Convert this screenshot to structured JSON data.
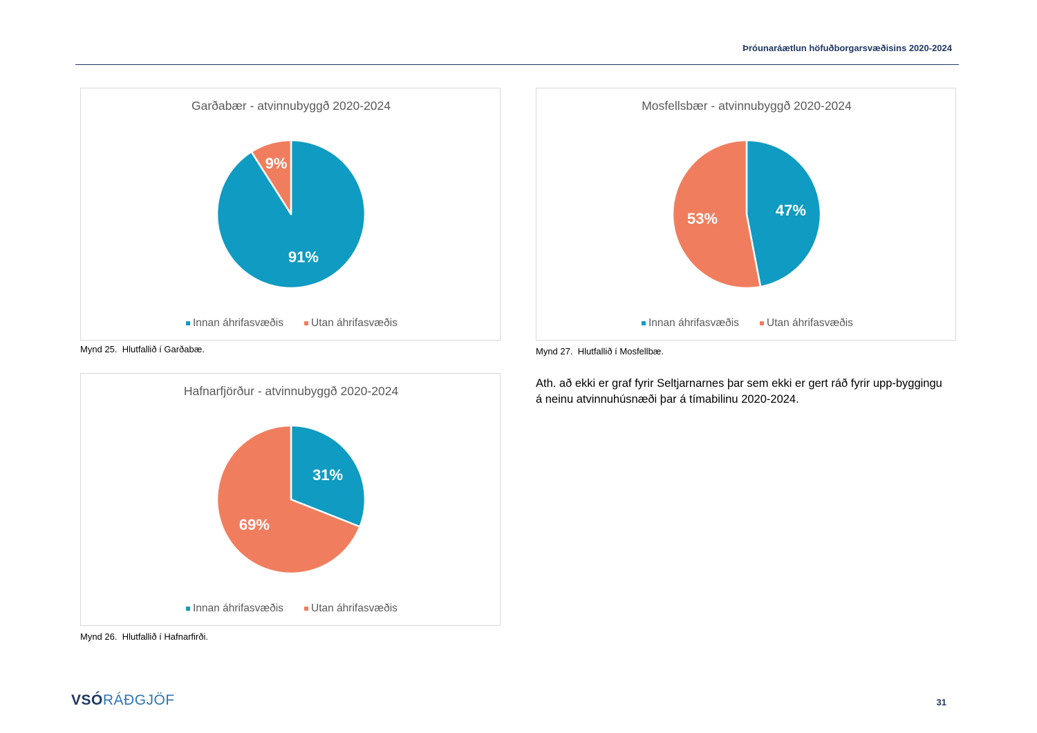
{
  "header": {
    "title": "Þróunaráætlun höfuðborgarsvæðisins 2020-2024"
  },
  "captions": {
    "fig25": "Mynd 25.  Hlutfallið í Garðabæ.",
    "fig26": "Mynd 26.  Hlutfallið í Hafnarfirði.",
    "fig27": "Mynd 27.  Hlutfallið í Mosfellbæ."
  },
  "note": "Ath. að ekki er graf fyrir Seltjarnarnes þar sem ekki er gert ráð fyrir upp-byggingu á neinu atvinnuhúsnæði þar á tímabilinu 2020-2024.",
  "footer": {
    "logo_strong": "VSÓ",
    "logo_light": "RÁÐGJÖF",
    "page_number": "31"
  },
  "colors": {
    "innan": "#0f9bc2",
    "utan": "#f07e5e",
    "accent": "#1f3864"
  },
  "chart_data": [
    {
      "type": "pie",
      "title": "Garðabær - atvinnubyggð 2020-2024",
      "categories": [
        "Innan áhrifasvæðis",
        "Utan áhrifasvæðis"
      ],
      "values": [
        91,
        9
      ],
      "labels": [
        "91%",
        "9%"
      ],
      "legend": "bottom"
    },
    {
      "type": "pie",
      "title": "Hafnarfjörður - atvinnubyggð 2020-2024",
      "categories": [
        "Innan áhrifasvæðis",
        "Utan áhrifasvæðis"
      ],
      "values": [
        31,
        69
      ],
      "labels": [
        "31%",
        "69%"
      ],
      "legend": "bottom"
    },
    {
      "type": "pie",
      "title": "Mosfellsbær - atvinnubyggð 2020-2024",
      "categories": [
        "Innan áhrifasvæðis",
        "Utan áhrifasvæðis"
      ],
      "values": [
        47,
        53
      ],
      "labels": [
        "47%",
        "53%"
      ],
      "legend": "bottom"
    }
  ]
}
